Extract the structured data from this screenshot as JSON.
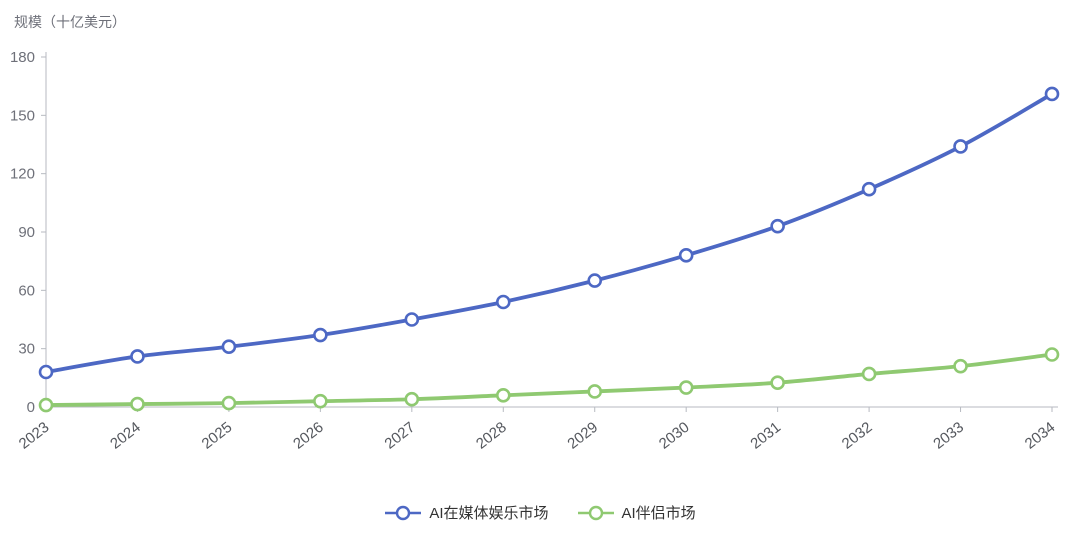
{
  "chart_data": {
    "type": "line",
    "title": "",
    "ylabel": "规模（十亿美元）",
    "xlabel": "",
    "categories": [
      "2023",
      "2024",
      "2025",
      "2026",
      "2027",
      "2028",
      "2029",
      "2030",
      "2031",
      "2032",
      "2033",
      "2034"
    ],
    "series": [
      {
        "name": "AI在媒体娱乐市场",
        "color": "#4d68c4",
        "values": [
          18,
          26,
          31,
          37,
          45,
          54,
          65,
          78,
          93,
          112,
          134,
          161
        ]
      },
      {
        "name": "AI伴侣市场",
        "color": "#8fc971",
        "values": [
          1,
          1.5,
          2,
          3,
          4,
          6,
          8,
          10,
          12.5,
          17,
          21,
          27
        ]
      }
    ],
    "ylim": [
      0,
      180
    ],
    "yticks": [
      0,
      30,
      60,
      90,
      120,
      150,
      180
    ],
    "grid": false,
    "smooth": true,
    "marker": "open-circle",
    "legend_position": "bottom",
    "axis_color": "#b7bac1"
  }
}
